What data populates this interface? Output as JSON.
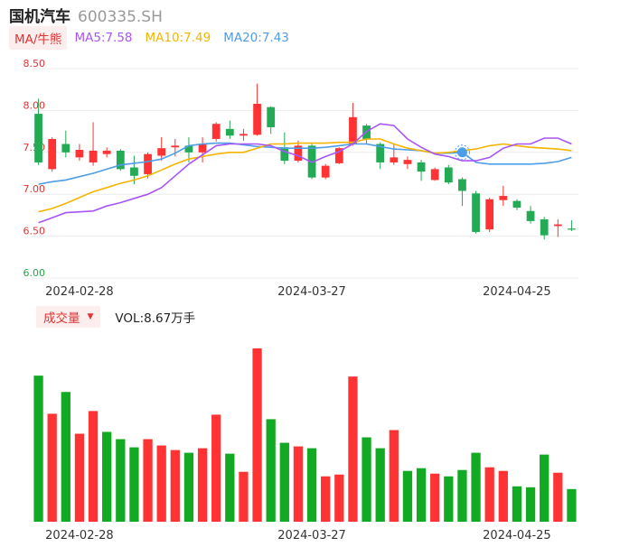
{
  "header": {
    "name": "国机汽车",
    "code": "600335.SH"
  },
  "ma_bar": {
    "mode": "MA/牛熊",
    "ma5": "MA5:7.58",
    "ma10": "MA10:7.49",
    "ma20": "MA20:7.43"
  },
  "volume_bar": {
    "select": "成交量",
    "value": "VOL:8.67万手"
  },
  "colors": {
    "up": "#ff3333",
    "down": "#22aa55",
    "ma5": "#a855f7",
    "ma10": "#f4b400",
    "ma20": "#4d9de8",
    "vol_up": "#ff3333",
    "vol_down": "#11aa22"
  },
  "chart_data": [
    {
      "type": "candlestick",
      "y_ticks": [
        "8.50",
        "8.00",
        "7.50",
        "7.00",
        "6.50",
        "6.00"
      ],
      "ylim": [
        6.0,
        8.5
      ],
      "x_ticks": [
        "2024-02-28",
        "2024-03-27",
        "2024-04-25"
      ],
      "x_tick_indices": [
        3,
        20,
        35
      ],
      "candles": [
        {
          "o": 7.96,
          "c": 7.38,
          "h": 8.14,
          "l": 7.35
        },
        {
          "o": 7.3,
          "c": 7.66,
          "h": 7.68,
          "l": 7.27
        },
        {
          "o": 7.6,
          "c": 7.5,
          "h": 7.76,
          "l": 7.44
        },
        {
          "o": 7.44,
          "c": 7.53,
          "h": 7.6,
          "l": 7.4
        },
        {
          "o": 7.38,
          "c": 7.52,
          "h": 7.86,
          "l": 7.34
        },
        {
          "o": 7.48,
          "c": 7.52,
          "h": 7.56,
          "l": 7.44
        },
        {
          "o": 7.52,
          "c": 7.3,
          "h": 7.54,
          "l": 7.28
        },
        {
          "o": 7.32,
          "c": 7.22,
          "h": 7.46,
          "l": 7.12
        },
        {
          "o": 7.24,
          "c": 7.48,
          "h": 7.5,
          "l": 7.19
        },
        {
          "o": 7.46,
          "c": 7.55,
          "h": 7.68,
          "l": 7.4
        },
        {
          "o": 7.56,
          "c": 7.58,
          "h": 7.66,
          "l": 7.45
        },
        {
          "o": 7.58,
          "c": 7.5,
          "h": 7.68,
          "l": 7.38
        },
        {
          "o": 7.5,
          "c": 7.6,
          "h": 7.68,
          "l": 7.38
        },
        {
          "o": 7.66,
          "c": 7.84,
          "h": 7.86,
          "l": 7.63
        },
        {
          "o": 7.78,
          "c": 7.7,
          "h": 7.88,
          "l": 7.66
        },
        {
          "o": 7.7,
          "c": 7.72,
          "h": 7.78,
          "l": 7.64
        },
        {
          "o": 7.71,
          "c": 8.08,
          "h": 8.32,
          "l": 7.7
        },
        {
          "o": 8.04,
          "c": 7.8,
          "h": 8.05,
          "l": 7.72
        },
        {
          "o": 7.56,
          "c": 7.4,
          "h": 7.74,
          "l": 7.36
        },
        {
          "o": 7.4,
          "c": 7.58,
          "h": 7.64,
          "l": 7.38
        },
        {
          "o": 7.58,
          "c": 7.2,
          "h": 7.6,
          "l": 7.18
        },
        {
          "o": 7.2,
          "c": 7.34,
          "h": 7.36,
          "l": 7.18
        },
        {
          "o": 7.37,
          "c": 7.55,
          "h": 7.56,
          "l": 7.36
        },
        {
          "o": 7.6,
          "c": 7.92,
          "h": 8.09,
          "l": 7.58
        },
        {
          "o": 7.82,
          "c": 7.66,
          "h": 7.84,
          "l": 7.6
        },
        {
          "o": 7.6,
          "c": 7.38,
          "h": 7.62,
          "l": 7.3
        },
        {
          "o": 7.38,
          "c": 7.44,
          "h": 7.6,
          "l": 7.35
        },
        {
          "o": 7.36,
          "c": 7.41,
          "h": 7.45,
          "l": 7.3
        },
        {
          "o": 7.38,
          "c": 7.27,
          "h": 7.41,
          "l": 7.16
        },
        {
          "o": 7.17,
          "c": 7.3,
          "h": 7.32,
          "l": 7.16
        },
        {
          "o": 7.32,
          "c": 7.14,
          "h": 7.35,
          "l": 7.12
        },
        {
          "o": 7.18,
          "c": 7.04,
          "h": 7.2,
          "l": 6.86
        },
        {
          "o": 7.01,
          "c": 6.55,
          "h": 7.04,
          "l": 6.53
        },
        {
          "o": 6.58,
          "c": 6.94,
          "h": 6.96,
          "l": 6.55
        },
        {
          "o": 6.93,
          "c": 6.98,
          "h": 7.1,
          "l": 6.86
        },
        {
          "o": 6.92,
          "c": 6.84,
          "h": 6.94,
          "l": 6.81
        },
        {
          "o": 6.8,
          "c": 6.68,
          "h": 6.86,
          "l": 6.65
        },
        {
          "o": 6.7,
          "c": 6.51,
          "h": 6.73,
          "l": 6.46
        },
        {
          "o": 6.62,
          "c": 6.64,
          "h": 6.7,
          "l": 6.49
        },
        {
          "o": 6.59,
          "c": 6.58,
          "h": 6.69,
          "l": 6.56
        }
      ],
      "ma5": [
        6.66,
        6.72,
        6.78,
        6.79,
        6.8,
        6.86,
        6.9,
        6.95,
        7.0,
        7.08,
        7.22,
        7.36,
        7.47,
        7.58,
        7.6,
        7.6,
        7.6,
        7.58,
        7.51,
        7.46,
        7.38,
        7.45,
        7.51,
        7.6,
        7.75,
        7.84,
        7.82,
        7.66,
        7.56,
        7.48,
        7.45,
        7.4,
        7.4,
        7.44,
        7.55,
        7.6,
        7.6,
        7.67,
        7.67,
        7.6
      ],
      "ma10": [
        6.79,
        6.83,
        6.89,
        6.96,
        7.03,
        7.08,
        7.13,
        7.17,
        7.22,
        7.29,
        7.36,
        7.42,
        7.45,
        7.48,
        7.5,
        7.5,
        7.55,
        7.6,
        7.6,
        7.61,
        7.61,
        7.61,
        7.62,
        7.62,
        7.66,
        7.66,
        7.6,
        7.55,
        7.52,
        7.49,
        7.5,
        7.52,
        7.54,
        7.58,
        7.6,
        7.58,
        7.56,
        7.55,
        7.54,
        7.52
      ],
      "ma20": [
        7.12,
        7.15,
        7.17,
        7.21,
        7.25,
        7.3,
        7.35,
        7.37,
        7.39,
        7.42,
        7.49,
        7.58,
        7.6,
        7.61,
        7.61,
        7.59,
        7.57,
        7.56,
        7.55,
        7.55,
        7.55,
        7.56,
        7.58,
        7.6,
        7.6,
        7.57,
        7.54,
        7.53,
        7.52,
        7.49,
        7.49,
        7.5,
        7.38,
        7.36,
        7.36,
        7.36,
        7.36,
        7.37,
        7.39,
        7.44
      ],
      "highlight_index": 31
    },
    {
      "type": "bar",
      "label": "成交量",
      "x_ticks": [
        "2024-02-28",
        "2024-03-27",
        "2024-04-25"
      ],
      "values": [
        16.1,
        11.9,
        14.3,
        9.7,
        12.2,
        9.9,
        9.1,
        8.2,
        9.1,
        8.4,
        7.9,
        7.6,
        8.1,
        11.8,
        7.5,
        5.5,
        19.1,
        11.3,
        8.7,
        8.3,
        8.1,
        5.0,
        5.2,
        16.0,
        9.3,
        8.1,
        10.1,
        5.6,
        5.9,
        5.3,
        5.0,
        5.7,
        7.6,
        6.0,
        5.6,
        3.9,
        3.8,
        7.4,
        5.4,
        3.6
      ],
      "up": [
        false,
        true,
        false,
        true,
        true,
        false,
        false,
        false,
        true,
        true,
        true,
        false,
        true,
        true,
        false,
        true,
        true,
        false,
        false,
        true,
        false,
        true,
        true,
        true,
        false,
        false,
        true,
        false,
        false,
        true,
        false,
        false,
        false,
        true,
        true,
        false,
        false,
        false,
        true,
        false
      ]
    }
  ]
}
